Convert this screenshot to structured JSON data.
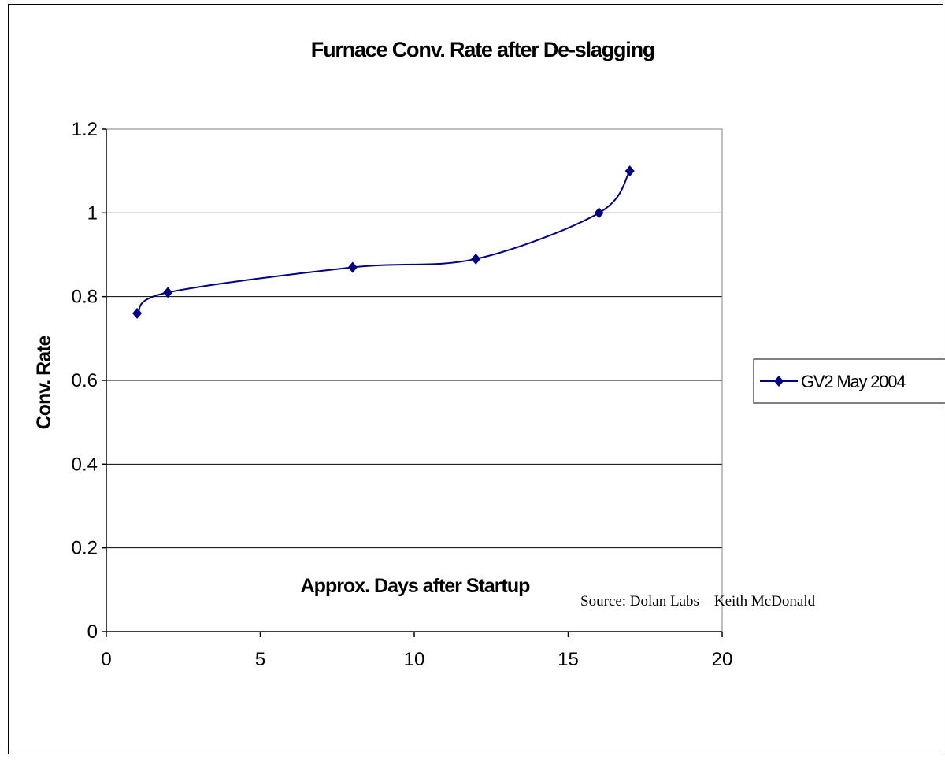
{
  "chart_data": {
    "type": "line",
    "title": "Furnace Conv. Rate after De-slagging",
    "xlabel": "Approx. Days after Startup",
    "ylabel": "Conv. Rate",
    "xlim": [
      0,
      20
    ],
    "ylim": [
      0,
      1.2
    ],
    "x_ticks": [
      "0",
      "5",
      "10",
      "15",
      "20"
    ],
    "y_ticks": [
      "0",
      "0.2",
      "0.4",
      "0.6",
      "0.8",
      "1",
      "1.2"
    ],
    "grid": "horizontal",
    "legend_position": "right",
    "series": [
      {
        "name": "GV2 May 2004",
        "color": "#000080",
        "marker": "diamond",
        "smoothed": true,
        "points": [
          {
            "x": 1,
            "y": 0.76
          },
          {
            "x": 2,
            "y": 0.81
          },
          {
            "x": 8,
            "y": 0.87
          },
          {
            "x": 12,
            "y": 0.89
          },
          {
            "x": 16,
            "y": 1.0
          },
          {
            "x": 17,
            "y": 1.1
          }
        ]
      }
    ],
    "annotation": "Source: Dolan Labs – Keith McDonald"
  }
}
